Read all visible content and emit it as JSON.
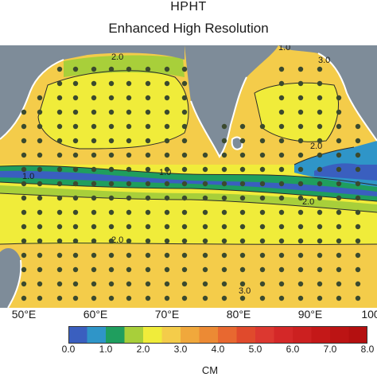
{
  "titles": {
    "main": "HPHT",
    "sub": "Enhanced High Resolution"
  },
  "map": {
    "region": "Indian Ocean / Arabian Sea / Bay of Bengal",
    "colors": {
      "land": "#7e8c99",
      "coast": "#ffffff",
      "contour": "#2a2a2a",
      "station": "#3b4a2e"
    },
    "longitude_labels": [
      "50°E",
      "60°E",
      "70°E",
      "80°E",
      "90°E",
      "100"
    ],
    "contour_labels": [
      "2.0",
      "1.0",
      "3.0",
      "2.0",
      "1.0",
      "1.0",
      "2.0",
      "2.0",
      "3.0"
    ]
  },
  "colorbar": {
    "ticks": [
      "0.0",
      "1.0",
      "2.0",
      "3.0",
      "4.0",
      "5.0",
      "6.0",
      "7.0",
      "8.0"
    ],
    "units": "CM",
    "colors": [
      "#3a5fbf",
      "#2f95c8",
      "#1f9e5e",
      "#a8cf3a",
      "#f0ec3a",
      "#f4cc4a",
      "#f0a83c",
      "#ec8a34",
      "#e86830",
      "#e04a2c",
      "#dc3830",
      "#d42828",
      "#cc2020",
      "#c41818",
      "#bc1414",
      "#b41010"
    ]
  }
}
